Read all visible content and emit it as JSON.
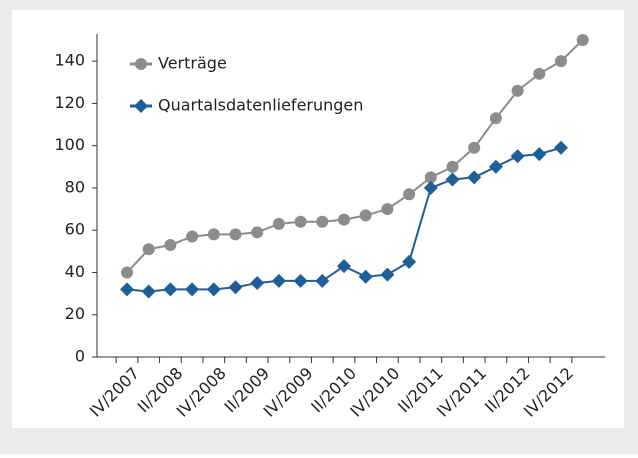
{
  "chart_data": {
    "type": "line",
    "categories": [
      "IV/2007",
      null,
      "II/2008",
      null,
      "IV/2008",
      null,
      "II/2009",
      null,
      "IV/2009",
      null,
      "II/2010",
      null,
      "IV/2010",
      null,
      "II/2011",
      null,
      "IV/2011",
      null,
      "II/2012",
      null,
      "IV/2012",
      null
    ],
    "series": [
      {
        "name": "Verträge",
        "color": "#8c8c8c",
        "marker": "circle",
        "values": [
          40,
          51,
          53,
          57,
          58,
          58,
          59,
          63,
          64,
          64,
          65,
          67,
          70,
          77,
          85,
          90,
          99,
          113,
          126,
          134,
          140,
          150
        ]
      },
      {
        "name": "Quartalsdatenlieferungen",
        "color": "#1f5f99",
        "marker": "diamond",
        "values": [
          32,
          31,
          32,
          32,
          32,
          33,
          35,
          36,
          36,
          36,
          43,
          38,
          39,
          45,
          80,
          84,
          85,
          90,
          95,
          96,
          99,
          null
        ]
      }
    ],
    "ylim": [
      0,
      150
    ],
    "yticks": [
      0,
      20,
      40,
      60,
      80,
      100,
      120,
      140
    ],
    "legend": "top-left",
    "grid": false
  }
}
